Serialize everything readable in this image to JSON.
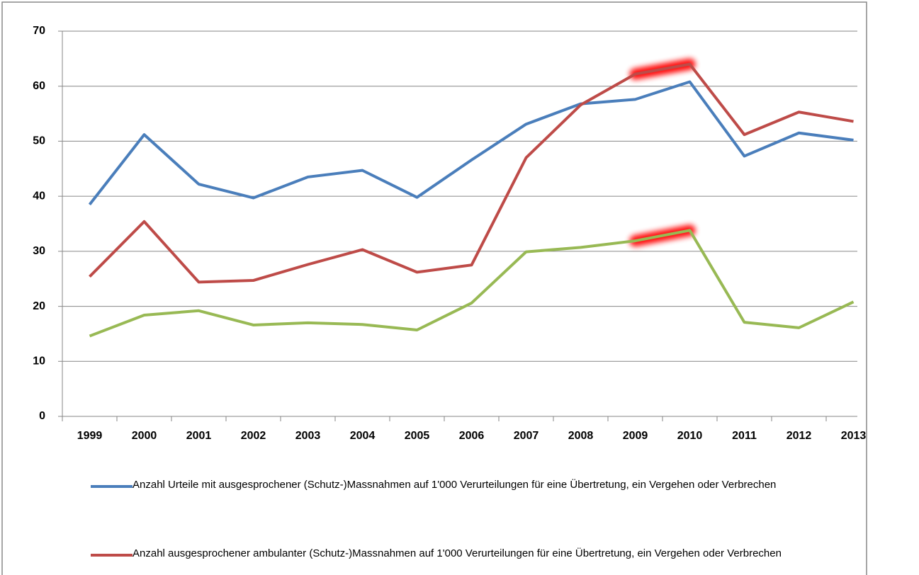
{
  "chart_data": {
    "type": "line",
    "categories": [
      "1999",
      "2000",
      "2001",
      "2002",
      "2003",
      "2004",
      "2005",
      "2006",
      "2007",
      "2008",
      "2009",
      "2010",
      "2011",
      "2012",
      "2013"
    ],
    "series": [
      {
        "name": "Anzahl Urteile mit ausgesprochener (Schutz-)Massnahmen auf 1'000 Verurteilungen  für eine Übertretung, ein Vergehen oder Verbrechen",
        "color": "#4a7ebb",
        "values": [
          38.5,
          51.2,
          42.2,
          39.7,
          43.5,
          44.7,
          39.8,
          46.6,
          53.1,
          56.8,
          57.6,
          60.8,
          47.3,
          51.5,
          50.2
        ]
      },
      {
        "name": "Anzahl ausgesprochener ambulanter (Schutz-)Massnahmen auf 1'000 Verurteilungen  für eine Übertretung, ein Vergehen oder Verbrechen",
        "color": "#be4b48",
        "values": [
          25.4,
          35.4,
          24.4,
          24.7,
          27.6,
          30.3,
          26.2,
          27.5,
          47.0,
          56.6,
          62.2,
          64.0,
          51.2,
          55.3,
          53.6
        ]
      },
      {
        "color": "#98b954",
        "values": [
          14.6,
          18.4,
          19.2,
          16.6,
          17.0,
          16.7,
          15.7,
          20.6,
          29.9,
          30.7,
          31.9,
          33.8,
          17.1,
          16.1,
          20.8
        ]
      }
    ],
    "ylim": [
      0,
      70
    ],
    "yticks": [
      0,
      10,
      20,
      30,
      40,
      50,
      60,
      70
    ],
    "grid": true
  }
}
